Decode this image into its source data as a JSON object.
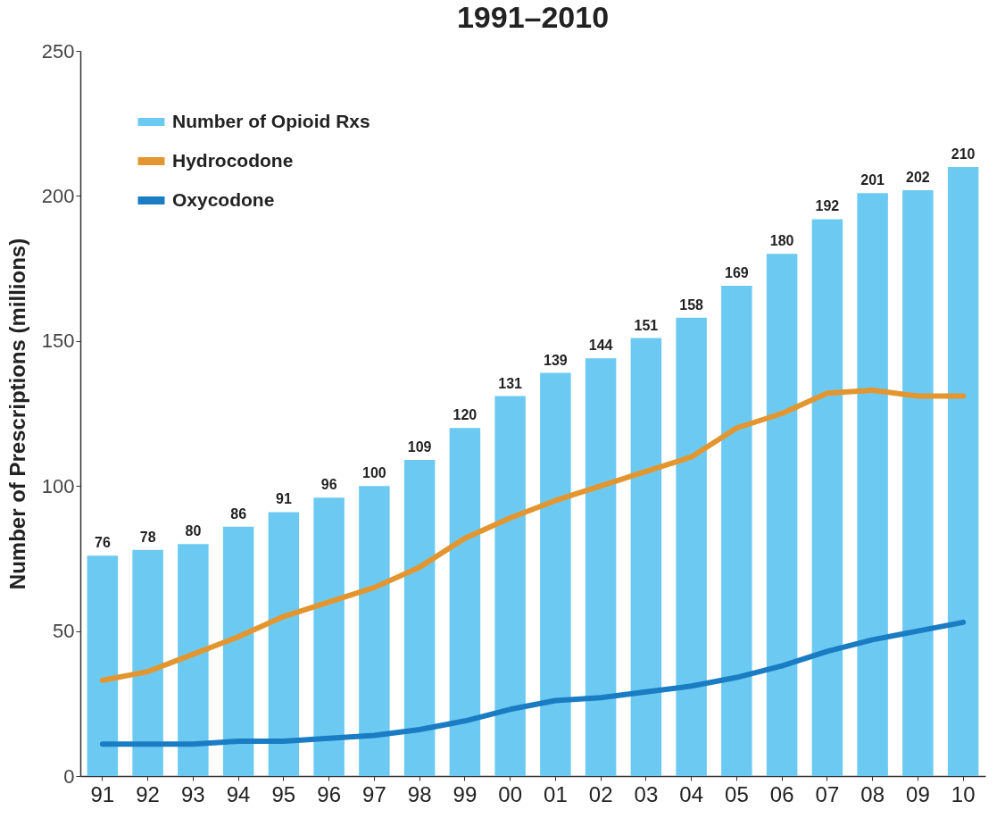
{
  "chart_data": {
    "type": "bar",
    "title": "1991–2010",
    "ylabel": "Number of Prescriptions (millions)",
    "categories": [
      "91",
      "92",
      "93",
      "94",
      "95",
      "96",
      "97",
      "98",
      "99",
      "00",
      "01",
      "02",
      "03",
      "04",
      "05",
      "06",
      "07",
      "08",
      "09",
      "10"
    ],
    "series": [
      {
        "name": "Number of Opioid Rxs",
        "color": "#6ccaf2",
        "values": [
          76,
          78,
          80,
          86,
          91,
          96,
          100,
          109,
          120,
          131,
          139,
          144,
          151,
          158,
          169,
          180,
          192,
          201,
          202,
          210
        ],
        "value_labels": [
          "76",
          "78",
          "80",
          "86",
          "91",
          "96",
          "100",
          "109",
          "120",
          "131",
          "139",
          "144",
          "151",
          "158",
          "169",
          "180",
          "192",
          "201",
          "202",
          "210"
        ]
      },
      {
        "name": "Hydrocodone",
        "type": "line",
        "color": "#e3962f",
        "values": [
          33,
          36,
          42,
          48,
          55,
          60,
          65,
          72,
          82,
          89,
          95,
          100,
          105,
          110,
          120,
          125,
          132,
          133,
          131,
          131
        ]
      },
      {
        "name": "Oxycodone",
        "type": "line",
        "color": "#1a7cc2",
        "values": [
          11,
          11,
          11,
          12,
          12,
          13,
          14,
          16,
          19,
          23,
          26,
          27,
          29,
          31,
          34,
          38,
          43,
          47,
          50,
          53
        ]
      }
    ],
    "ylim": [
      0,
      250
    ],
    "yticks": [
      0,
      50,
      100,
      150,
      200,
      250
    ],
    "legend": "top left"
  }
}
